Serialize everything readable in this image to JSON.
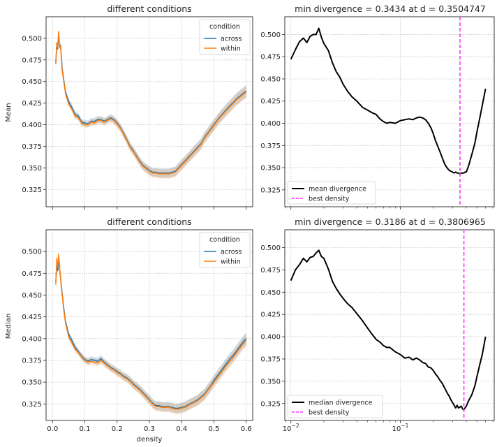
{
  "chart_data": [
    {
      "type": "line",
      "title": "different conditions",
      "xlabel": "",
      "ylabel": "Mean",
      "xlim": [
        -0.02,
        0.62
      ],
      "ylim": [
        0.305,
        0.525
      ],
      "xticks": [
        0.0,
        0.1,
        0.2,
        0.3,
        0.4,
        0.5,
        0.6
      ],
      "xtick_labels_visible": false,
      "yticks": [
        0.325,
        0.35,
        0.375,
        0.4,
        0.425,
        0.45,
        0.475,
        0.5
      ],
      "ytick_labels": [
        "0.325",
        "0.350",
        "0.375",
        "0.400",
        "0.425",
        "0.450",
        "0.475",
        "0.500"
      ],
      "grid": true,
      "legend": {
        "title": "condition",
        "placement": "top-right"
      },
      "series": [
        {
          "name": "across",
          "color": "#1f77b4",
          "x": [
            0.01,
            0.013,
            0.016,
            0.019,
            0.022,
            0.025,
            0.03,
            0.035,
            0.04,
            0.05,
            0.06,
            0.07,
            0.08,
            0.09,
            0.1,
            0.11,
            0.12,
            0.13,
            0.14,
            0.15,
            0.16,
            0.17,
            0.18,
            0.19,
            0.2,
            0.21,
            0.22,
            0.23,
            0.24,
            0.25,
            0.26,
            0.27,
            0.28,
            0.29,
            0.3,
            0.31,
            0.32,
            0.33,
            0.34,
            0.35,
            0.36,
            0.37,
            0.38,
            0.39,
            0.4,
            0.41,
            0.42,
            0.43,
            0.44,
            0.45,
            0.46,
            0.47,
            0.48,
            0.49,
            0.5,
            0.51,
            0.52,
            0.53,
            0.54,
            0.55,
            0.56,
            0.57,
            0.58,
            0.59,
            0.6
          ],
          "y": [
            0.472,
            0.49,
            0.488,
            0.505,
            0.49,
            0.492,
            0.465,
            0.452,
            0.438,
            0.427,
            0.42,
            0.412,
            0.41,
            0.403,
            0.402,
            0.401,
            0.404,
            0.404,
            0.406,
            0.406,
            0.404,
            0.406,
            0.408,
            0.406,
            0.402,
            0.397,
            0.39,
            0.383,
            0.375,
            0.37,
            0.364,
            0.358,
            0.353,
            0.35,
            0.347,
            0.345,
            0.345,
            0.344,
            0.344,
            0.344,
            0.344,
            0.345,
            0.346,
            0.35,
            0.354,
            0.358,
            0.362,
            0.366,
            0.37,
            0.374,
            0.378,
            0.385,
            0.39,
            0.395,
            0.4,
            0.405,
            0.41,
            0.414,
            0.418,
            0.422,
            0.426,
            0.43,
            0.433,
            0.436,
            0.439
          ]
        },
        {
          "name": "within",
          "color": "#ff7f0e",
          "x": [
            0.01,
            0.013,
            0.016,
            0.019,
            0.022,
            0.025,
            0.03,
            0.035,
            0.04,
            0.05,
            0.06,
            0.07,
            0.08,
            0.09,
            0.1,
            0.11,
            0.12,
            0.13,
            0.14,
            0.15,
            0.16,
            0.17,
            0.18,
            0.19,
            0.2,
            0.21,
            0.22,
            0.23,
            0.24,
            0.25,
            0.26,
            0.27,
            0.28,
            0.29,
            0.3,
            0.31,
            0.32,
            0.33,
            0.34,
            0.35,
            0.36,
            0.37,
            0.38,
            0.39,
            0.4,
            0.41,
            0.42,
            0.43,
            0.44,
            0.45,
            0.46,
            0.47,
            0.48,
            0.49,
            0.5,
            0.51,
            0.52,
            0.53,
            0.54,
            0.55,
            0.56,
            0.57,
            0.58,
            0.59,
            0.6
          ],
          "y": [
            0.47,
            0.495,
            0.49,
            0.508,
            0.492,
            0.49,
            0.462,
            0.45,
            0.436,
            0.424,
            0.418,
            0.41,
            0.408,
            0.402,
            0.4,
            0.4,
            0.403,
            0.402,
            0.405,
            0.405,
            0.403,
            0.405,
            0.407,
            0.405,
            0.401,
            0.396,
            0.389,
            0.382,
            0.374,
            0.369,
            0.363,
            0.357,
            0.352,
            0.349,
            0.346,
            0.344,
            0.344,
            0.343,
            0.343,
            0.343,
            0.343,
            0.344,
            0.345,
            0.349,
            0.353,
            0.357,
            0.361,
            0.365,
            0.369,
            0.373,
            0.377,
            0.384,
            0.389,
            0.394,
            0.399,
            0.404,
            0.409,
            0.413,
            0.417,
            0.421,
            0.425,
            0.429,
            0.432,
            0.435,
            0.438
          ]
        }
      ]
    },
    {
      "type": "line",
      "title": "min divergence = 0.3434 at d = 0.3504747",
      "xlabel": "",
      "ylabel": "",
      "xscale": "log",
      "xlim": [
        0.0088,
        0.72
      ],
      "ylim": [
        0.306,
        0.52
      ],
      "xticks": [
        0.01,
        0.1
      ],
      "xtick_labels_visible": false,
      "yticks": [
        0.325,
        0.35,
        0.375,
        0.4,
        0.425,
        0.45,
        0.475,
        0.5
      ],
      "ytick_labels": [
        "0.325",
        "0.350",
        "0.375",
        "0.400",
        "0.425",
        "0.450",
        "0.475",
        "0.500"
      ],
      "grid": true,
      "legend": {
        "placement": "bottom-left"
      },
      "vline": {
        "x": 0.3504747,
        "name": "best density",
        "color": "#ff33ff"
      },
      "series": [
        {
          "name": "mean divergence",
          "color": "#000000",
          "x": [
            0.01,
            0.011,
            0.012,
            0.013,
            0.014,
            0.015,
            0.016,
            0.017,
            0.018,
            0.019,
            0.02,
            0.022,
            0.024,
            0.026,
            0.028,
            0.03,
            0.033,
            0.036,
            0.04,
            0.045,
            0.05,
            0.055,
            0.06,
            0.065,
            0.07,
            0.075,
            0.08,
            0.09,
            0.1,
            0.11,
            0.12,
            0.13,
            0.14,
            0.15,
            0.16,
            0.17,
            0.18,
            0.19,
            0.2,
            0.21,
            0.22,
            0.23,
            0.24,
            0.25,
            0.26,
            0.27,
            0.28,
            0.29,
            0.3,
            0.31,
            0.32,
            0.33,
            0.34,
            0.35,
            0.36,
            0.37,
            0.38,
            0.39,
            0.4,
            0.42,
            0.45,
            0.48,
            0.5,
            0.53,
            0.56,
            0.6
          ],
          "y": [
            0.472,
            0.483,
            0.492,
            0.496,
            0.491,
            0.498,
            0.5,
            0.5,
            0.507,
            0.497,
            0.49,
            0.482,
            0.468,
            0.458,
            0.452,
            0.444,
            0.436,
            0.43,
            0.425,
            0.418,
            0.415,
            0.412,
            0.41,
            0.405,
            0.402,
            0.4,
            0.401,
            0.4,
            0.403,
            0.404,
            0.405,
            0.404,
            0.406,
            0.407,
            0.406,
            0.404,
            0.4,
            0.395,
            0.388,
            0.38,
            0.374,
            0.368,
            0.362,
            0.356,
            0.352,
            0.349,
            0.347,
            0.346,
            0.345,
            0.344,
            0.345,
            0.344,
            0.344,
            0.343,
            0.344,
            0.344,
            0.344,
            0.345,
            0.345,
            0.352,
            0.365,
            0.378,
            0.39,
            0.405,
            0.42,
            0.439
          ]
        }
      ]
    },
    {
      "type": "line",
      "title": "different conditions",
      "xlabel": "density",
      "ylabel": "Median",
      "xlim": [
        -0.02,
        0.62
      ],
      "ylim": [
        0.306,
        0.525
      ],
      "xticks": [
        0.0,
        0.1,
        0.2,
        0.3,
        0.4,
        0.5,
        0.6
      ],
      "xtick_labels": [
        "0.0",
        "0.1",
        "0.2",
        "0.3",
        "0.4",
        "0.5",
        "0.6"
      ],
      "yticks": [
        0.325,
        0.35,
        0.375,
        0.4,
        0.425,
        0.45,
        0.475,
        0.5
      ],
      "ytick_labels": [
        "0.325",
        "0.350",
        "0.375",
        "0.400",
        "0.425",
        "0.450",
        "0.475",
        "0.500"
      ],
      "grid": true,
      "legend": {
        "title": "condition",
        "placement": "top-right"
      },
      "series": [
        {
          "name": "across",
          "color": "#1f77b4",
          "x": [
            0.01,
            0.013,
            0.016,
            0.019,
            0.022,
            0.025,
            0.03,
            0.035,
            0.04,
            0.05,
            0.06,
            0.07,
            0.08,
            0.09,
            0.1,
            0.11,
            0.12,
            0.13,
            0.14,
            0.15,
            0.16,
            0.17,
            0.18,
            0.19,
            0.2,
            0.21,
            0.22,
            0.23,
            0.24,
            0.25,
            0.26,
            0.27,
            0.28,
            0.29,
            0.3,
            0.31,
            0.32,
            0.33,
            0.34,
            0.35,
            0.36,
            0.37,
            0.38,
            0.39,
            0.4,
            0.41,
            0.42,
            0.43,
            0.44,
            0.45,
            0.46,
            0.47,
            0.48,
            0.49,
            0.5,
            0.51,
            0.52,
            0.53,
            0.54,
            0.55,
            0.56,
            0.57,
            0.58,
            0.59,
            0.6
          ],
          "y": [
            0.465,
            0.485,
            0.478,
            0.49,
            0.48,
            0.47,
            0.452,
            0.435,
            0.42,
            0.405,
            0.398,
            0.39,
            0.385,
            0.38,
            0.376,
            0.374,
            0.376,
            0.375,
            0.374,
            0.377,
            0.373,
            0.37,
            0.367,
            0.365,
            0.362,
            0.36,
            0.357,
            0.355,
            0.352,
            0.348,
            0.345,
            0.342,
            0.338,
            0.334,
            0.33,
            0.326,
            0.323,
            0.323,
            0.322,
            0.322,
            0.322,
            0.321,
            0.32,
            0.32,
            0.321,
            0.322,
            0.324,
            0.326,
            0.328,
            0.33,
            0.333,
            0.336,
            0.341,
            0.346,
            0.352,
            0.357,
            0.362,
            0.367,
            0.372,
            0.377,
            0.381,
            0.386,
            0.391,
            0.396,
            0.4
          ]
        },
        {
          "name": "within",
          "color": "#ff7f0e",
          "x": [
            0.01,
            0.013,
            0.016,
            0.019,
            0.022,
            0.025,
            0.03,
            0.035,
            0.04,
            0.05,
            0.06,
            0.07,
            0.08,
            0.09,
            0.1,
            0.11,
            0.12,
            0.13,
            0.14,
            0.15,
            0.16,
            0.17,
            0.18,
            0.19,
            0.2,
            0.21,
            0.22,
            0.23,
            0.24,
            0.25,
            0.26,
            0.27,
            0.28,
            0.29,
            0.3,
            0.31,
            0.32,
            0.33,
            0.34,
            0.35,
            0.36,
            0.37,
            0.38,
            0.39,
            0.4,
            0.41,
            0.42,
            0.43,
            0.44,
            0.45,
            0.46,
            0.47,
            0.48,
            0.49,
            0.5,
            0.51,
            0.52,
            0.53,
            0.54,
            0.55,
            0.56,
            0.57,
            0.58,
            0.59,
            0.6
          ],
          "y": [
            0.462,
            0.492,
            0.482,
            0.497,
            0.484,
            0.468,
            0.45,
            0.432,
            0.418,
            0.402,
            0.395,
            0.388,
            0.384,
            0.379,
            0.375,
            0.373,
            0.374,
            0.373,
            0.372,
            0.375,
            0.372,
            0.369,
            0.366,
            0.364,
            0.361,
            0.359,
            0.356,
            0.354,
            0.351,
            0.347,
            0.344,
            0.341,
            0.337,
            0.333,
            0.329,
            0.325,
            0.322,
            0.322,
            0.321,
            0.321,
            0.321,
            0.32,
            0.319,
            0.319,
            0.32,
            0.321,
            0.323,
            0.325,
            0.327,
            0.329,
            0.332,
            0.335,
            0.34,
            0.345,
            0.35,
            0.355,
            0.36,
            0.365,
            0.37,
            0.374,
            0.379,
            0.384,
            0.389,
            0.394,
            0.398
          ]
        }
      ]
    },
    {
      "type": "line",
      "title": "min divergence = 0.3186 at d = 0.3806965",
      "xlabel": "",
      "ylabel": "",
      "xscale": "log",
      "xlim": [
        0.0088,
        0.72
      ],
      "ylim": [
        0.306,
        0.52
      ],
      "xticks": [
        0.01,
        0.1
      ],
      "xtick_labels": [
        "10^-2",
        "10^-1"
      ],
      "yticks": [
        0.325,
        0.35,
        0.375,
        0.4,
        0.425,
        0.45,
        0.475,
        0.5
      ],
      "ytick_labels": [
        "0.325",
        "0.350",
        "0.375",
        "0.400",
        "0.425",
        "0.450",
        "0.475",
        "0.500"
      ],
      "grid": true,
      "legend": {
        "placement": "bottom-left"
      },
      "vline": {
        "x": 0.3806965,
        "name": "best density",
        "color": "#ff33ff"
      },
      "series": [
        {
          "name": "median divergence",
          "color": "#000000",
          "x": [
            0.01,
            0.011,
            0.012,
            0.013,
            0.014,
            0.015,
            0.016,
            0.017,
            0.018,
            0.019,
            0.02,
            0.022,
            0.024,
            0.026,
            0.028,
            0.03,
            0.033,
            0.036,
            0.04,
            0.045,
            0.05,
            0.055,
            0.06,
            0.065,
            0.07,
            0.075,
            0.08,
            0.09,
            0.1,
            0.11,
            0.12,
            0.13,
            0.14,
            0.15,
            0.16,
            0.17,
            0.18,
            0.19,
            0.2,
            0.21,
            0.22,
            0.23,
            0.24,
            0.25,
            0.26,
            0.27,
            0.28,
            0.29,
            0.3,
            0.31,
            0.32,
            0.33,
            0.34,
            0.35,
            0.36,
            0.37,
            0.38,
            0.39,
            0.4,
            0.42,
            0.45,
            0.48,
            0.5,
            0.53,
            0.56,
            0.6
          ],
          "y": [
            0.463,
            0.475,
            0.481,
            0.488,
            0.484,
            0.489,
            0.49,
            0.494,
            0.497,
            0.49,
            0.488,
            0.476,
            0.462,
            0.454,
            0.448,
            0.443,
            0.437,
            0.433,
            0.426,
            0.418,
            0.41,
            0.403,
            0.397,
            0.394,
            0.39,
            0.388,
            0.388,
            0.383,
            0.38,
            0.376,
            0.377,
            0.374,
            0.376,
            0.374,
            0.371,
            0.37,
            0.366,
            0.365,
            0.362,
            0.358,
            0.355,
            0.351,
            0.348,
            0.344,
            0.34,
            0.336,
            0.333,
            0.329,
            0.326,
            0.323,
            0.32,
            0.323,
            0.32,
            0.321,
            0.322,
            0.319,
            0.318,
            0.32,
            0.322,
            0.328,
            0.335,
            0.345,
            0.355,
            0.368,
            0.38,
            0.4
          ]
        }
      ]
    }
  ]
}
